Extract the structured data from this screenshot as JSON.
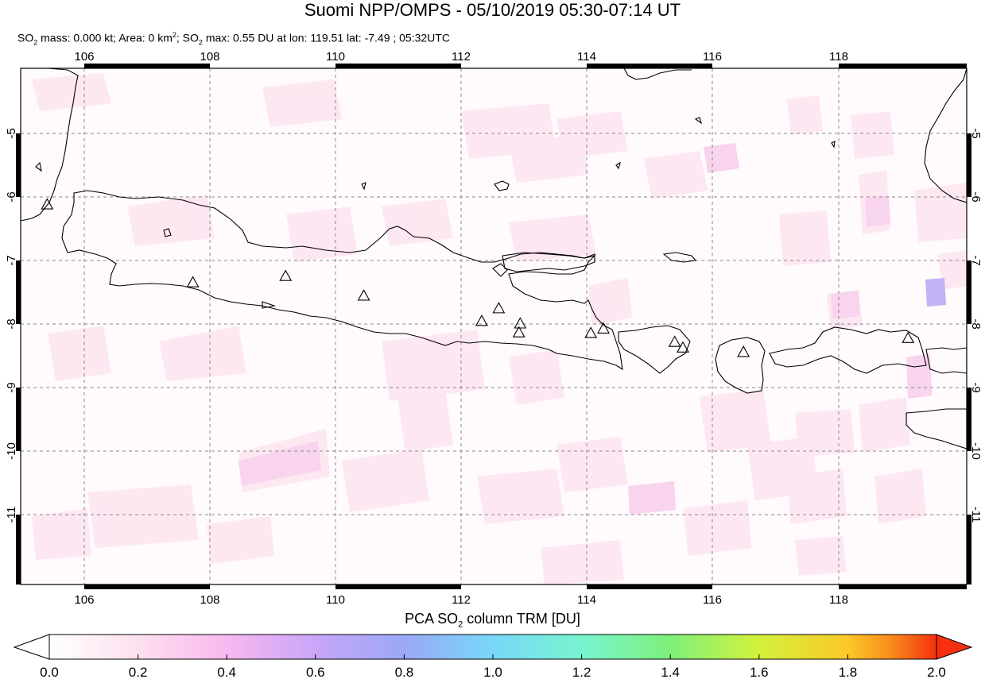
{
  "header": {
    "title": "Suomi NPP/OMPS - 05/10/2019 05:30-07:14 UT",
    "subtitle_parts": [
      "SO",
      "2",
      " mass: 0.000 kt; Area: 0 km",
      "2",
      "; SO",
      "2",
      " max: 0.55 DU at lon: 119.51 lat: -7.49 ; 05:32UTC"
    ]
  },
  "map": {
    "lon_range": [
      105,
      120
    ],
    "lat_range": [
      -12.1,
      -3.95
    ],
    "lon_ticks": [
      "106",
      "108",
      "110",
      "112",
      "114",
      "116",
      "118"
    ],
    "lat_ticks": [
      "-5",
      "-6",
      "-7",
      "-8",
      "-9",
      "-10",
      "-11"
    ],
    "grid": "dashed",
    "volcano_marker": "triangle-icon",
    "volcanoes": [
      {
        "lon": 105.42,
        "lat": -6.1
      },
      {
        "lon": 107.73,
        "lat": -7.33
      },
      {
        "lon": 109.2,
        "lat": -7.23
      },
      {
        "lon": 110.44,
        "lat": -7.54
      },
      {
        "lon": 112.31,
        "lat": -7.94
      },
      {
        "lon": 112.58,
        "lat": -7.74
      },
      {
        "lon": 112.92,
        "lat": -7.98
      },
      {
        "lon": 112.9,
        "lat": -8.12
      },
      {
        "lon": 114.04,
        "lat": -8.13
      },
      {
        "lon": 114.24,
        "lat": -8.06
      },
      {
        "lon": 115.37,
        "lat": -8.27
      },
      {
        "lon": 115.5,
        "lat": -8.36
      },
      {
        "lon": 116.46,
        "lat": -8.43
      },
      {
        "lon": 119.07,
        "lat": -8.21
      }
    ]
  },
  "colorbar": {
    "label_parts": [
      "PCA SO",
      "2",
      " column TRM [DU]"
    ],
    "ticks": [
      "0.0",
      "0.2",
      "0.4",
      "0.6",
      "0.8",
      "1.0",
      "1.2",
      "1.4",
      "1.6",
      "1.8",
      "2.0"
    ],
    "colors": [
      "#ffffff",
      "#fde0ee",
      "#f9b8f0",
      "#c8a6f8",
      "#9aa8f6",
      "#78d8f8",
      "#78f4d0",
      "#7ef07a",
      "#d2f23c",
      "#fbc828",
      "#f88a1c",
      "#f4300e"
    ]
  }
}
